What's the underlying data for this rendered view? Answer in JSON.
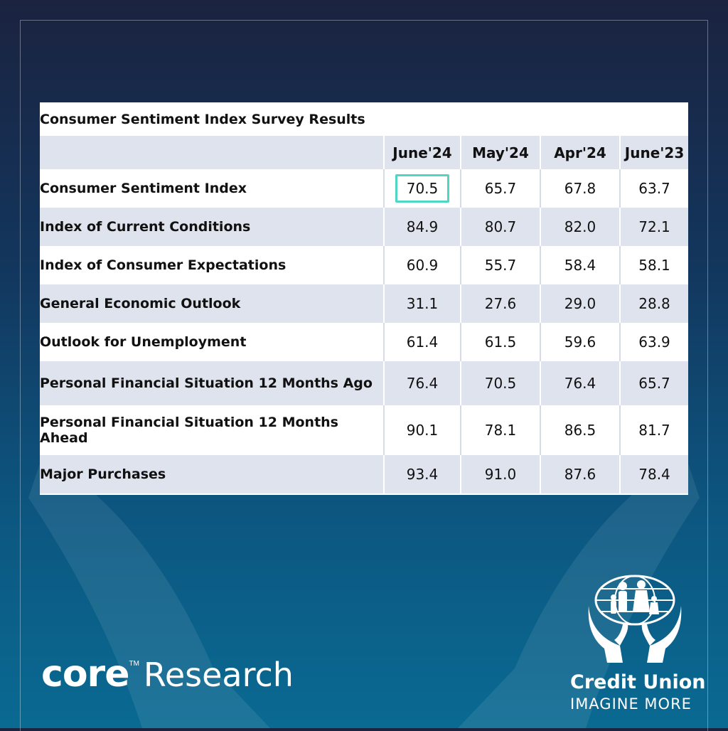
{
  "chart_data": {
    "type": "table",
    "title": "Consumer Sentiment Index Survey Results",
    "columns": [
      "June'24",
      "May'24",
      "Apr'24",
      "June'23"
    ],
    "rows": [
      {
        "label": "Consumer Sentiment Index",
        "values": [
          "70.5",
          "65.7",
          "67.8",
          "63.7"
        ]
      },
      {
        "label": "Index of Current Conditions",
        "values": [
          "84.9",
          "80.7",
          "82.0",
          "72.1"
        ]
      },
      {
        "label": "Index of Consumer Expectations",
        "values": [
          "60.9",
          "55.7",
          "58.4",
          "58.1"
        ]
      },
      {
        "label": "General Economic Outlook",
        "values": [
          "31.1",
          "27.6",
          "29.0",
          "28.8"
        ]
      },
      {
        "label": "Outlook for Unemployment",
        "values": [
          "61.4",
          "61.5",
          "59.6",
          "63.9"
        ]
      },
      {
        "label": "Personal Financial Situation 12 Months Ago",
        "values": [
          "76.4",
          "70.5",
          "76.4",
          "65.7"
        ]
      },
      {
        "label": "Personal Financial Situation 12 Months Ahead",
        "values": [
          "90.1",
          "78.1",
          "86.5",
          "81.7"
        ]
      },
      {
        "label": "Major Purchases",
        "values": [
          "93.4",
          "91.0",
          "87.6",
          "78.4"
        ]
      }
    ],
    "highlight_accent": "#4fd6c4"
  },
  "branding": {
    "core_word": "core",
    "core_tm": "TM",
    "research_word": "Research",
    "cu_name": "Credit Union",
    "cu_tagline": "IMAGINE MORE"
  }
}
